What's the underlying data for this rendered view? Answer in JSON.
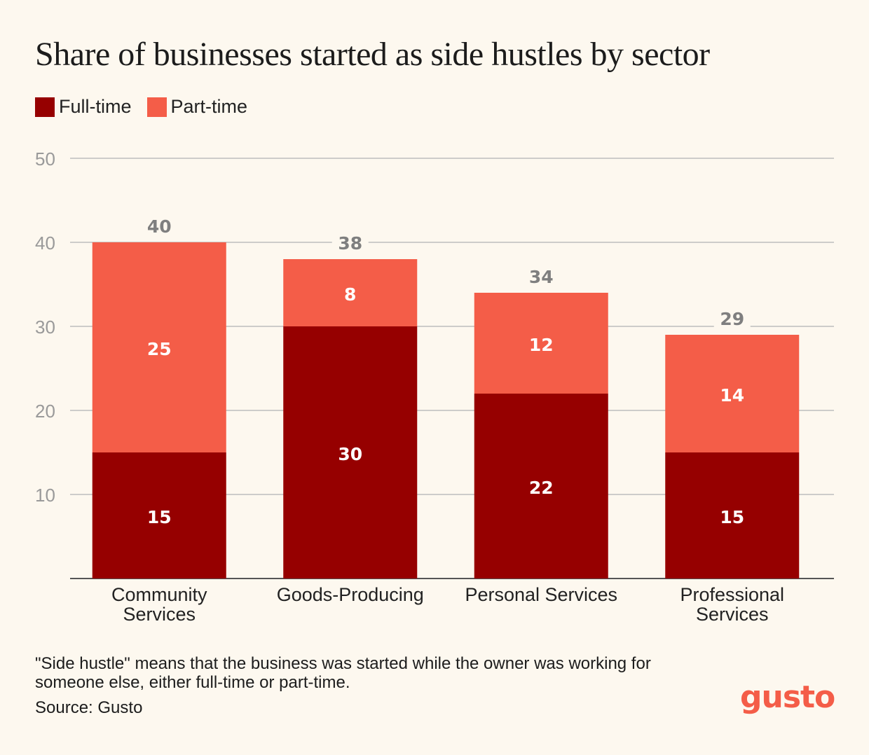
{
  "colors": {
    "background": "#fdf8ef",
    "full_time": "#960000",
    "part_time": "#f45d48",
    "grid": "#bdbdbd",
    "tick_text": "#9a9a9a",
    "total_label": "#7f7f7f"
  },
  "legend": {
    "items": [
      {
        "label": "Full-time",
        "color": "#960000"
      },
      {
        "label": "Part-time",
        "color": "#f45d48"
      }
    ]
  },
  "chart_data": {
    "type": "bar",
    "stacked": true,
    "title": "Share of businesses started as side hustles by sector",
    "categories": [
      "Community Services",
      "Goods-Producing",
      "Personal Services",
      "Professional Services"
    ],
    "series": [
      {
        "name": "Full-time",
        "values": [
          15,
          30,
          22,
          15
        ]
      },
      {
        "name": "Part-time",
        "values": [
          25,
          8,
          12,
          14
        ]
      }
    ],
    "totals": [
      40,
      38,
      34,
      29
    ],
    "yticks": [
      10,
      20,
      30,
      40,
      50
    ],
    "ylim": [
      0,
      50
    ],
    "grid": true,
    "legend_position": "top-left",
    "xlabel": "",
    "ylabel": ""
  },
  "footnote": "\"Side hustle\" means that the business was started while the owner was working for someone else, either full-time or part-time.",
  "source": "Source: Gusto",
  "logo_text": "gusto"
}
